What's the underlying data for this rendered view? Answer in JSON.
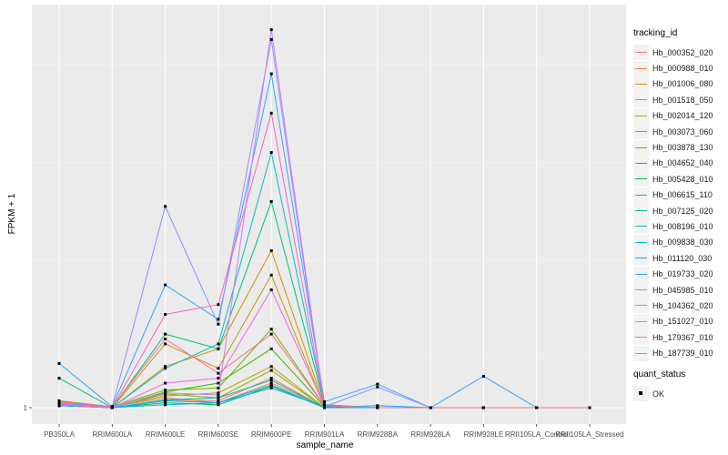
{
  "chart_data": {
    "type": "line",
    "xlabel": "sample_name",
    "ylabel": "FPKM + 1",
    "y_ticks": [
      1
    ],
    "categories": [
      "PB350LA",
      "RRIM600LA",
      "RRIM600LE",
      "RRIM600SE",
      "RRIM600PE",
      "RRIM901LA",
      "RRIM928BA",
      "RRIM928LA",
      "RRIM928LE",
      "RRII105LA_Control",
      "RRII105LA_Stressed"
    ],
    "grid": true,
    "legend_placement": "right",
    "legend_title": "tracking_id",
    "series": [
      {
        "name": "Hb_000352_020",
        "color": "#F8766D",
        "values": [
          1.04,
          1.0,
          1.08,
          1.07,
          1.3,
          1.0,
          1.0,
          1.0,
          1.0,
          1.0,
          1.0
        ]
      },
      {
        "name": "Hb_000988_010",
        "color": "#EC8239",
        "values": [
          1.06,
          1.01,
          1.1,
          1.05,
          1.25,
          1.01,
          1.0,
          1.0,
          1.0,
          1.0,
          1.0
        ]
      },
      {
        "name": "Hb_001006_080",
        "color": "#DB8E00",
        "values": [
          1.02,
          1.0,
          1.42,
          1.6,
          2.6,
          1.02,
          1.0,
          1.0,
          1.0,
          1.0,
          1.0
        ]
      },
      {
        "name": "Hb_001518_050",
        "color": "#C79800",
        "values": [
          1.03,
          1.0,
          1.65,
          1.4,
          2.35,
          1.01,
          1.0,
          1.0,
          1.0,
          1.0,
          1.0
        ]
      },
      {
        "name": "Hb_002014_120",
        "color": "#AFA100",
        "values": [
          1.05,
          1.01,
          1.12,
          1.15,
          1.42,
          1.0,
          1.0,
          1.0,
          1.0,
          1.0,
          1.0
        ]
      },
      {
        "name": "Hb_003073_060",
        "color": "#94A900",
        "values": [
          1.04,
          1.0,
          1.14,
          1.1,
          1.38,
          1.0,
          1.0,
          1.0,
          1.0,
          1.0,
          1.0
        ]
      },
      {
        "name": "Hb_003878_130",
        "color": "#72B000",
        "values": [
          1.07,
          1.01,
          1.18,
          1.2,
          1.8,
          1.02,
          1.0,
          1.0,
          1.0,
          1.0,
          1.0
        ]
      },
      {
        "name": "Hb_004652_040",
        "color": "#3DB700",
        "values": [
          1.05,
          1.0,
          1.16,
          1.25,
          1.6,
          1.01,
          1.0,
          1.0,
          1.0,
          1.0,
          1.0
        ]
      },
      {
        "name": "Hb_005428_010",
        "color": "#00BC44",
        "values": [
          1.02,
          1.0,
          1.05,
          1.03,
          1.22,
          1.0,
          1.0,
          1.0,
          1.0,
          1.0,
          1.0
        ]
      },
      {
        "name": "Hb_006615_110",
        "color": "#00BF7D",
        "values": [
          1.3,
          1.0,
          1.75,
          1.6,
          3.1,
          1.03,
          1.0,
          1.0,
          1.0,
          1.0,
          1.0
        ]
      },
      {
        "name": "Hb_007125_020",
        "color": "#00C1A3",
        "values": [
          1.03,
          1.0,
          1.08,
          1.1,
          1.28,
          1.0,
          1.0,
          1.0,
          1.0,
          1.0,
          1.0
        ]
      },
      {
        "name": "Hb_008196_010",
        "color": "#00BFC4",
        "values": [
          1.02,
          1.0,
          1.4,
          1.65,
          3.6,
          1.03,
          1.0,
          1.0,
          1.0,
          1.0,
          1.0
        ]
      },
      {
        "name": "Hb_009838_030",
        "color": "#00B8E5",
        "values": [
          1.04,
          1.0,
          1.03,
          1.05,
          1.2,
          1.01,
          1.0,
          1.0,
          1.0,
          1.0,
          1.0
        ]
      },
      {
        "name": "Hb_011120_030",
        "color": "#00ABFD",
        "values": [
          1.02,
          1.0,
          1.07,
          1.05,
          1.23,
          1.0,
          1.02,
          1.0,
          1.0,
          1.0,
          1.0
        ]
      },
      {
        "name": "Hb_019733_020",
        "color": "#35A2FF",
        "values": [
          1.45,
          1.01,
          2.25,
          1.9,
          4.4,
          1.06,
          1.24,
          1.0,
          1.32,
          1.0,
          1.0
        ]
      },
      {
        "name": "Hb_045985_010",
        "color": "#8F91FF",
        "values": [
          1.05,
          1.01,
          3.05,
          1.85,
          4.75,
          1.01,
          1.21,
          1.0,
          1.0,
          1.0,
          1.0
        ]
      },
      {
        "name": "Hb_104362_020",
        "color": "#C77CFF",
        "values": [
          1.03,
          1.0,
          1.15,
          1.13,
          4.85,
          1.02,
          1.0,
          1.0,
          1.0,
          1.0,
          1.0
        ]
      },
      {
        "name": "Hb_151027_010",
        "color": "#ED68ED",
        "values": [
          1.04,
          1.0,
          1.25,
          1.3,
          2.2,
          1.02,
          1.0,
          1.0,
          1.0,
          1.0,
          1.0
        ]
      },
      {
        "name": "Hb_179367_010",
        "color": "#FF61C3",
        "values": [
          1.03,
          1.0,
          1.95,
          2.05,
          4.0,
          1.02,
          1.0,
          1.0,
          1.0,
          1.0,
          1.0
        ]
      },
      {
        "name": "Hb_187739_010",
        "color": "#FF6C91",
        "values": [
          1.06,
          1.01,
          1.7,
          1.35,
          1.75,
          1.02,
          1.0,
          1.0,
          1.0,
          1.0,
          1.0
        ]
      }
    ],
    "shape_legend": {
      "title": "quant_status",
      "items": [
        "OK"
      ]
    }
  }
}
